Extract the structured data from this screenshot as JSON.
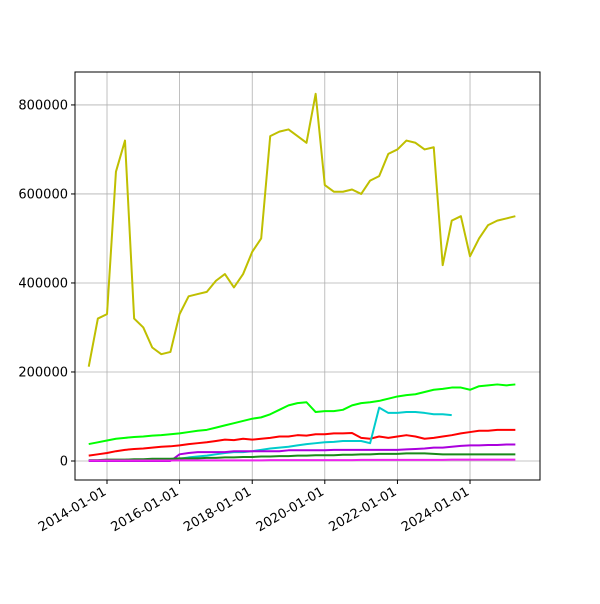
{
  "chart_data": {
    "type": "line",
    "x": [
      "2013-07-01",
      "2013-10-01",
      "2014-01-01",
      "2014-04-01",
      "2014-07-01",
      "2014-10-01",
      "2015-01-01",
      "2015-04-01",
      "2015-07-01",
      "2015-10-01",
      "2016-01-01",
      "2016-04-01",
      "2016-07-01",
      "2016-10-01",
      "2017-01-01",
      "2017-04-01",
      "2017-07-01",
      "2017-10-01",
      "2018-01-01",
      "2018-04-01",
      "2018-07-01",
      "2018-10-01",
      "2019-01-01",
      "2019-04-01",
      "2019-07-01",
      "2019-10-01",
      "2020-01-01",
      "2020-04-01",
      "2020-07-01",
      "2020-10-01",
      "2021-01-01",
      "2021-04-01",
      "2021-07-01",
      "2021-10-01",
      "2022-01-01",
      "2022-04-01",
      "2022-07-01",
      "2022-10-01",
      "2023-01-01",
      "2023-04-01",
      "2023-07-01",
      "2023-10-01",
      "2024-01-01",
      "2024-04-01",
      "2024-07-01",
      "2024-10-01",
      "2025-01-01",
      "2025-04-01"
    ],
    "series": [
      {
        "color": "#bfbf00",
        "values": [
          212000,
          320000,
          330000,
          650000,
          720000,
          320000,
          300000,
          255000,
          240000,
          245000,
          330000,
          370000,
          375000,
          380000,
          405000,
          420000,
          390000,
          420000,
          470000,
          500000,
          730000,
          740000,
          745000,
          730000,
          715000,
          825000,
          620000,
          605000,
          605000,
          610000,
          600000,
          630000,
          640000,
          690000,
          700000,
          720000,
          715000,
          700000,
          705000,
          440000,
          540000,
          550000,
          460000,
          500000,
          530000,
          540000,
          545000,
          550000
        ]
      },
      {
        "color": "#00ff00",
        "values": [
          38000,
          42000,
          46000,
          50000,
          52000,
          54000,
          55000,
          57000,
          58000,
          60000,
          62000,
          65000,
          68000,
          70000,
          75000,
          80000,
          85000,
          90000,
          95000,
          98000,
          105000,
          115000,
          125000,
          130000,
          132000,
          110000,
          112000,
          112000,
          115000,
          125000,
          130000,
          132000,
          135000,
          140000,
          145000,
          148000,
          150000,
          155000,
          160000,
          162000,
          165000,
          165000,
          160000,
          168000,
          170000,
          172000,
          170000,
          172000
        ]
      },
      {
        "color": "#ff0000",
        "values": [
          12000,
          15000,
          18000,
          22000,
          25000,
          27000,
          28000,
          30000,
          32000,
          33000,
          35000,
          38000,
          40000,
          42000,
          45000,
          48000,
          47000,
          50000,
          48000,
          50000,
          52000,
          55000,
          55000,
          58000,
          57000,
          60000,
          60000,
          62000,
          62000,
          63000,
          52000,
          50000,
          55000,
          52000,
          55000,
          58000,
          55000,
          50000,
          52000,
          55000,
          58000,
          62000,
          65000,
          68000,
          68000,
          70000,
          70000,
          70000
        ]
      },
      {
        "color": "#00cccc",
        "values": [
          null,
          null,
          null,
          null,
          null,
          null,
          null,
          null,
          null,
          null,
          5000,
          8000,
          10000,
          12000,
          15000,
          18000,
          20000,
          20000,
          22000,
          25000,
          28000,
          30000,
          32000,
          35000,
          38000,
          40000,
          42000,
          43000,
          45000,
          45000,
          45000,
          40000,
          120000,
          108000,
          108000,
          110000,
          110000,
          108000,
          105000,
          105000,
          103000,
          null,
          null,
          null,
          null,
          null,
          null,
          null
        ]
      },
      {
        "color": "#aa00dd",
        "values": [
          0,
          0,
          0,
          0,
          0,
          0,
          0,
          0,
          0,
          0,
          15000,
          18000,
          20000,
          20000,
          20000,
          20000,
          22000,
          22000,
          22000,
          22000,
          22000,
          22000,
          24000,
          24000,
          24000,
          24000,
          24000,
          25000,
          25000,
          25000,
          25000,
          25000,
          25000,
          25000,
          25000,
          26000,
          27000,
          28000,
          30000,
          30000,
          32000,
          34000,
          35000,
          35000,
          36000,
          36000,
          37000,
          37000
        ]
      },
      {
        "color": "#1a8a1a",
        "values": [
          2000,
          2000,
          3000,
          3000,
          3000,
          4000,
          4000,
          5000,
          5000,
          5000,
          6000,
          6000,
          6000,
          7000,
          7000,
          8000,
          8000,
          9000,
          9000,
          10000,
          10000,
          11000,
          11000,
          12000,
          12000,
          13000,
          13000,
          13000,
          14000,
          14000,
          15000,
          15000,
          16000,
          16000,
          16000,
          17000,
          17000,
          17000,
          16000,
          15000,
          15000,
          15000,
          15000,
          15000,
          15000,
          15000,
          15000,
          15000
        ]
      },
      {
        "color": "#ee22ee",
        "values": [
          1000,
          1000,
          1000,
          1000,
          1000,
          1000,
          1000,
          1000,
          1000,
          1000,
          1500,
          1500,
          1500,
          1500,
          1500,
          1500,
          1500,
          1500,
          1500,
          1500,
          2000,
          2000,
          2000,
          2000,
          2000,
          2000,
          2000,
          2000,
          2000,
          2000,
          2500,
          2500,
          2500,
          2500,
          2500,
          2500,
          2500,
          2500,
          2500,
          2500,
          3000,
          3000,
          3000,
          3000,
          3000,
          3000,
          3000,
          3000
        ]
      }
    ],
    "xlim": [
      "2013-02-13",
      "2025-12-05"
    ],
    "xticks": [
      "2014-01-01",
      "2016-01-01",
      "2018-01-01",
      "2020-01-01",
      "2022-01-01",
      "2024-01-01"
    ],
    "ylim": [
      -42700,
      874000
    ],
    "yticks": [
      0,
      200000,
      400000,
      600000,
      800000
    ],
    "grid": true
  }
}
